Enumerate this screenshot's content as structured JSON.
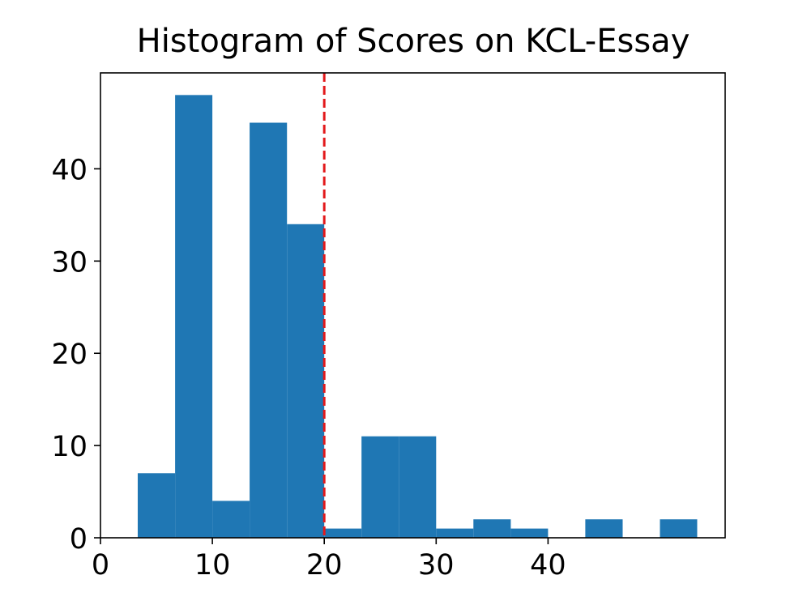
{
  "chart_data": {
    "type": "histogram",
    "title": "Histogram of Scores on KCL-Essay",
    "bins": [
      3.33,
      6.67,
      10,
      13.33,
      16.67,
      20,
      23.33,
      26.67,
      30,
      33.33,
      36.67,
      40,
      43.33,
      46.67,
      50,
      53.33
    ],
    "values": [
      7,
      48,
      4,
      45,
      34,
      1,
      11,
      11,
      1,
      2,
      1,
      0,
      2,
      0,
      2
    ],
    "color": "#1f77b4",
    "xlim": [
      0,
      55.83
    ],
    "xticks": [
      0,
      10,
      20,
      30,
      40
    ],
    "ylim": [
      0,
      50.4
    ],
    "yticks": [
      0,
      10,
      20,
      30,
      40
    ],
    "vline": {
      "value": 20,
      "color": "#e31a1c",
      "style": "dashed"
    },
    "grid": false
  }
}
